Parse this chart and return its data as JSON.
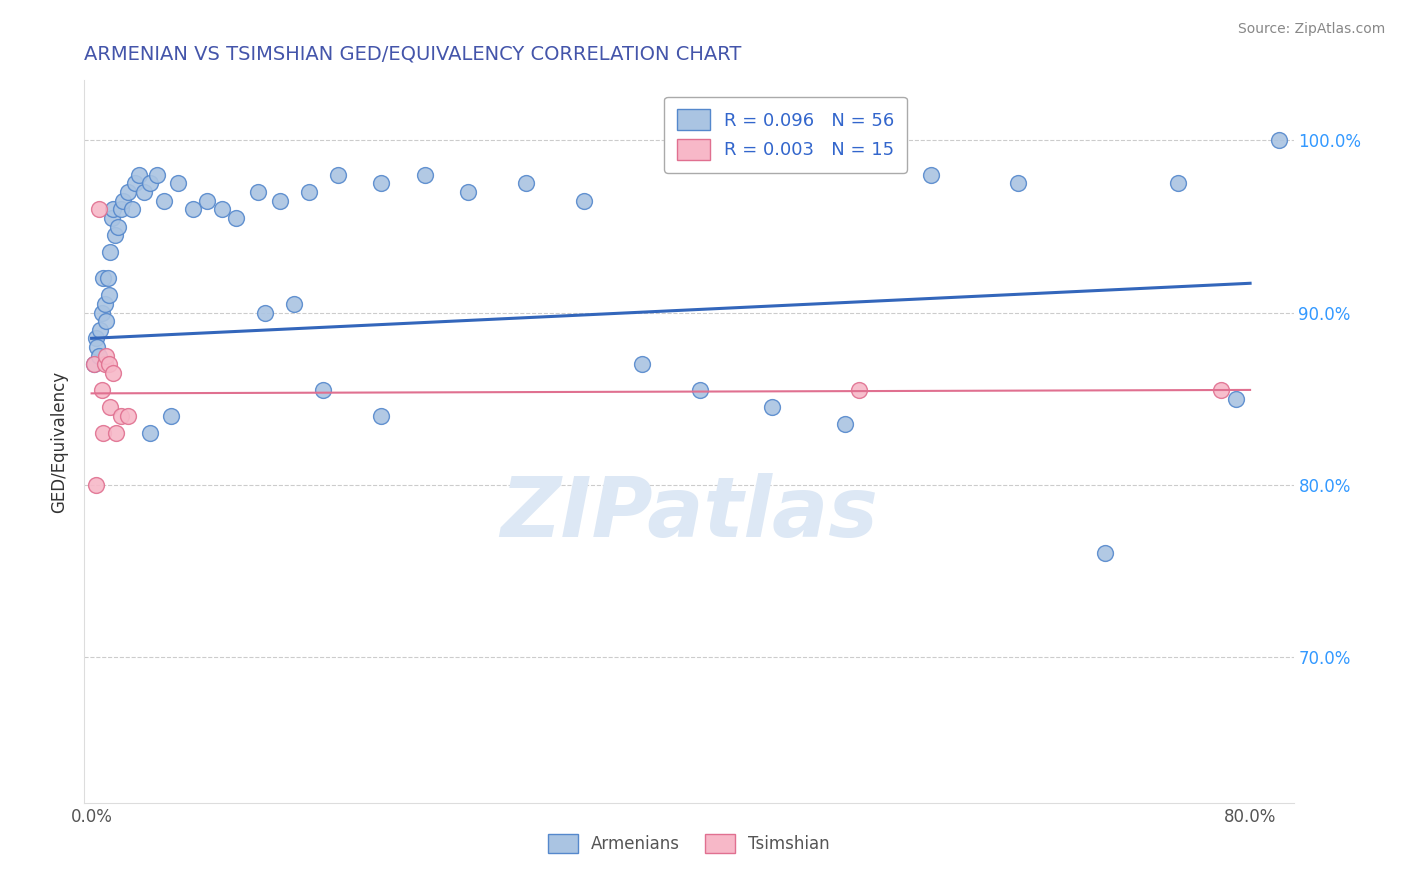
{
  "title": "ARMENIAN VS TSIMSHIAN GED/EQUIVALENCY CORRELATION CHART",
  "source": "Source: ZipAtlas.com",
  "ylabel": "GED/Equivalency",
  "legend_blue_label": "R = 0.096   N = 56",
  "legend_pink_label": "R = 0.003   N = 15",
  "armenian_color": "#aac4e2",
  "armenian_edge": "#5588cc",
  "tsimshian_color": "#f7b8c8",
  "tsimshian_edge": "#e07090",
  "trendline_blue": "#3366bb",
  "trendline_pink": "#e07090",
  "background_color": "#ffffff",
  "grid_color": "#cccccc",
  "title_color": "#4455aa",
  "axis_label_color": "#3399ff",
  "watermark_color": "#dde8f5",
  "xlim": [
    -0.005,
    0.83
  ],
  "ylim": [
    0.615,
    1.035
  ],
  "armenians_x": [
    0.002,
    0.003,
    0.004,
    0.005,
    0.006,
    0.007,
    0.008,
    0.009,
    0.01,
    0.011,
    0.012,
    0.013,
    0.014,
    0.015,
    0.016,
    0.018,
    0.02,
    0.022,
    0.025,
    0.028,
    0.03,
    0.033,
    0.036,
    0.04,
    0.045,
    0.05,
    0.06,
    0.07,
    0.08,
    0.09,
    0.1,
    0.115,
    0.13,
    0.15,
    0.17,
    0.2,
    0.23,
    0.26,
    0.3,
    0.34,
    0.38,
    0.42,
    0.47,
    0.52,
    0.58,
    0.64,
    0.7,
    0.75,
    0.79,
    0.82,
    0.2,
    0.16,
    0.04,
    0.055,
    0.12,
    0.14
  ],
  "armenians_y": [
    0.87,
    0.885,
    0.88,
    0.875,
    0.89,
    0.9,
    0.92,
    0.905,
    0.895,
    0.92,
    0.91,
    0.935,
    0.955,
    0.96,
    0.945,
    0.95,
    0.96,
    0.965,
    0.97,
    0.96,
    0.975,
    0.98,
    0.97,
    0.975,
    0.98,
    0.965,
    0.975,
    0.96,
    0.965,
    0.96,
    0.955,
    0.97,
    0.965,
    0.97,
    0.98,
    0.975,
    0.98,
    0.97,
    0.975,
    0.965,
    0.87,
    0.855,
    0.845,
    0.835,
    0.98,
    0.975,
    0.76,
    0.975,
    0.85,
    1.0,
    0.84,
    0.855,
    0.83,
    0.84,
    0.9,
    0.905
  ],
  "tsimshian_x": [
    0.002,
    0.003,
    0.005,
    0.007,
    0.008,
    0.009,
    0.01,
    0.012,
    0.013,
    0.015,
    0.017,
    0.02,
    0.025,
    0.53,
    0.78
  ],
  "tsimshian_y": [
    0.87,
    0.8,
    0.96,
    0.855,
    0.83,
    0.87,
    0.875,
    0.87,
    0.845,
    0.865,
    0.83,
    0.84,
    0.84,
    0.855,
    0.855
  ]
}
